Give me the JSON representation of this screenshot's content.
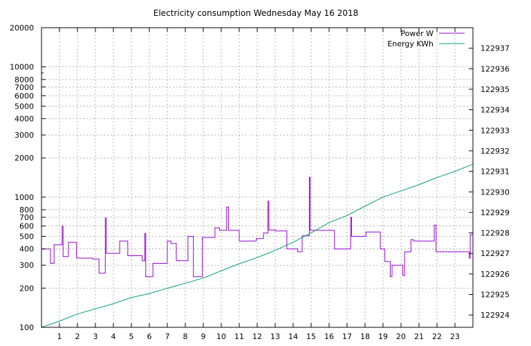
{
  "chart_data": {
    "type": "line",
    "title": "Electricity consumption Wednesday May 16 2018",
    "xlabel": "",
    "x_range": [
      0,
      24
    ],
    "x_ticks": [
      1,
      2,
      3,
      4,
      5,
      6,
      7,
      8,
      9,
      10,
      11,
      12,
      13,
      14,
      15,
      16,
      17,
      18,
      19,
      20,
      21,
      22,
      23
    ],
    "y_left": {
      "scale": "log",
      "range": [
        100,
        20000
      ],
      "ticks": [
        100,
        200,
        300,
        400,
        500,
        600,
        700,
        800,
        1000,
        2000,
        3000,
        4000,
        5000,
        6000,
        7000,
        8000,
        10000,
        20000
      ],
      "tick_labels": [
        "100",
        "200",
        "300",
        "400",
        "500",
        "600",
        "700",
        "800",
        "1000",
        "2000",
        "3000",
        "4000",
        "5000",
        "6000",
        "7000",
        "8000",
        "10000",
        "20000"
      ]
    },
    "y_right": {
      "scale": "linear",
      "range": [
        122923.4,
        122938
      ],
      "ticks": [
        122924,
        122925,
        122926,
        122927,
        122928,
        122929,
        122930,
        122931,
        122932,
        122933,
        122934,
        122935,
        122936,
        122937
      ],
      "tick_labels": [
        "122924",
        "122925",
        "122926",
        "122927",
        "122928",
        "122929",
        "122930",
        "122931",
        "122932",
        "122933",
        "122934",
        "122935",
        "122936",
        "122937"
      ]
    },
    "grid": true,
    "legend_position": "top-right",
    "series": [
      {
        "name": "Power W",
        "axis": "left",
        "color": "#9400d3",
        "step": true,
        "points": [
          [
            0,
            400
          ],
          [
            0.5,
            310
          ],
          [
            0.7,
            430
          ],
          [
            1.15,
            600
          ],
          [
            1.2,
            350
          ],
          [
            1.5,
            450
          ],
          [
            1.95,
            340
          ],
          [
            2.85,
            335
          ],
          [
            3.2,
            260
          ],
          [
            3.55,
            690
          ],
          [
            3.6,
            370
          ],
          [
            4.35,
            460
          ],
          [
            4.8,
            355
          ],
          [
            5.6,
            325
          ],
          [
            5.75,
            525
          ],
          [
            5.8,
            245
          ],
          [
            6.2,
            310
          ],
          [
            7.0,
            460
          ],
          [
            7.2,
            440
          ],
          [
            7.5,
            325
          ],
          [
            8.15,
            500
          ],
          [
            8.45,
            245
          ],
          [
            8.95,
            490
          ],
          [
            9.65,
            580
          ],
          [
            9.9,
            555
          ],
          [
            10.3,
            840
          ],
          [
            10.4,
            555
          ],
          [
            11.0,
            460
          ],
          [
            11.95,
            480
          ],
          [
            12.35,
            530
          ],
          [
            12.6,
            930
          ],
          [
            12.65,
            560
          ],
          [
            13.0,
            550
          ],
          [
            13.65,
            400
          ],
          [
            14.25,
            380
          ],
          [
            14.5,
            505
          ],
          [
            14.9,
            1420
          ],
          [
            14.95,
            555
          ],
          [
            16.3,
            400
          ],
          [
            17.2,
            700
          ],
          [
            17.25,
            500
          ],
          [
            18.05,
            540
          ],
          [
            18.85,
            400
          ],
          [
            19.1,
            320
          ],
          [
            19.4,
            245
          ],
          [
            19.5,
            300
          ],
          [
            20.1,
            250
          ],
          [
            20.2,
            380
          ],
          [
            20.55,
            470
          ],
          [
            20.7,
            460
          ],
          [
            21.85,
            610
          ],
          [
            21.95,
            380
          ],
          [
            23.8,
            340
          ],
          [
            23.85,
            515
          ],
          [
            24,
            515
          ]
        ]
      },
      {
        "name": "Energy KWh",
        "axis": "right",
        "color": "#009e73",
        "step": false,
        "points": [
          [
            0,
            122923.4
          ],
          [
            1,
            122923.7
          ],
          [
            2,
            122924.05
          ],
          [
            3,
            122924.3
          ],
          [
            4,
            122924.55
          ],
          [
            5,
            122924.85
          ],
          [
            6,
            122925.05
          ],
          [
            7,
            122925.3
          ],
          [
            8,
            122925.55
          ],
          [
            9,
            122925.8
          ],
          [
            10,
            122926.15
          ],
          [
            11,
            122926.5
          ],
          [
            12,
            122926.8
          ],
          [
            13,
            122927.15
          ],
          [
            14,
            122927.55
          ],
          [
            15,
            122928.0
          ],
          [
            16,
            122928.5
          ],
          [
            17,
            122928.85
          ],
          [
            18,
            122929.3
          ],
          [
            19,
            122929.75
          ],
          [
            20,
            122930.05
          ],
          [
            21,
            122930.35
          ],
          [
            22,
            122930.7
          ],
          [
            23,
            122931.0
          ],
          [
            24,
            122931.35
          ]
        ]
      }
    ]
  }
}
